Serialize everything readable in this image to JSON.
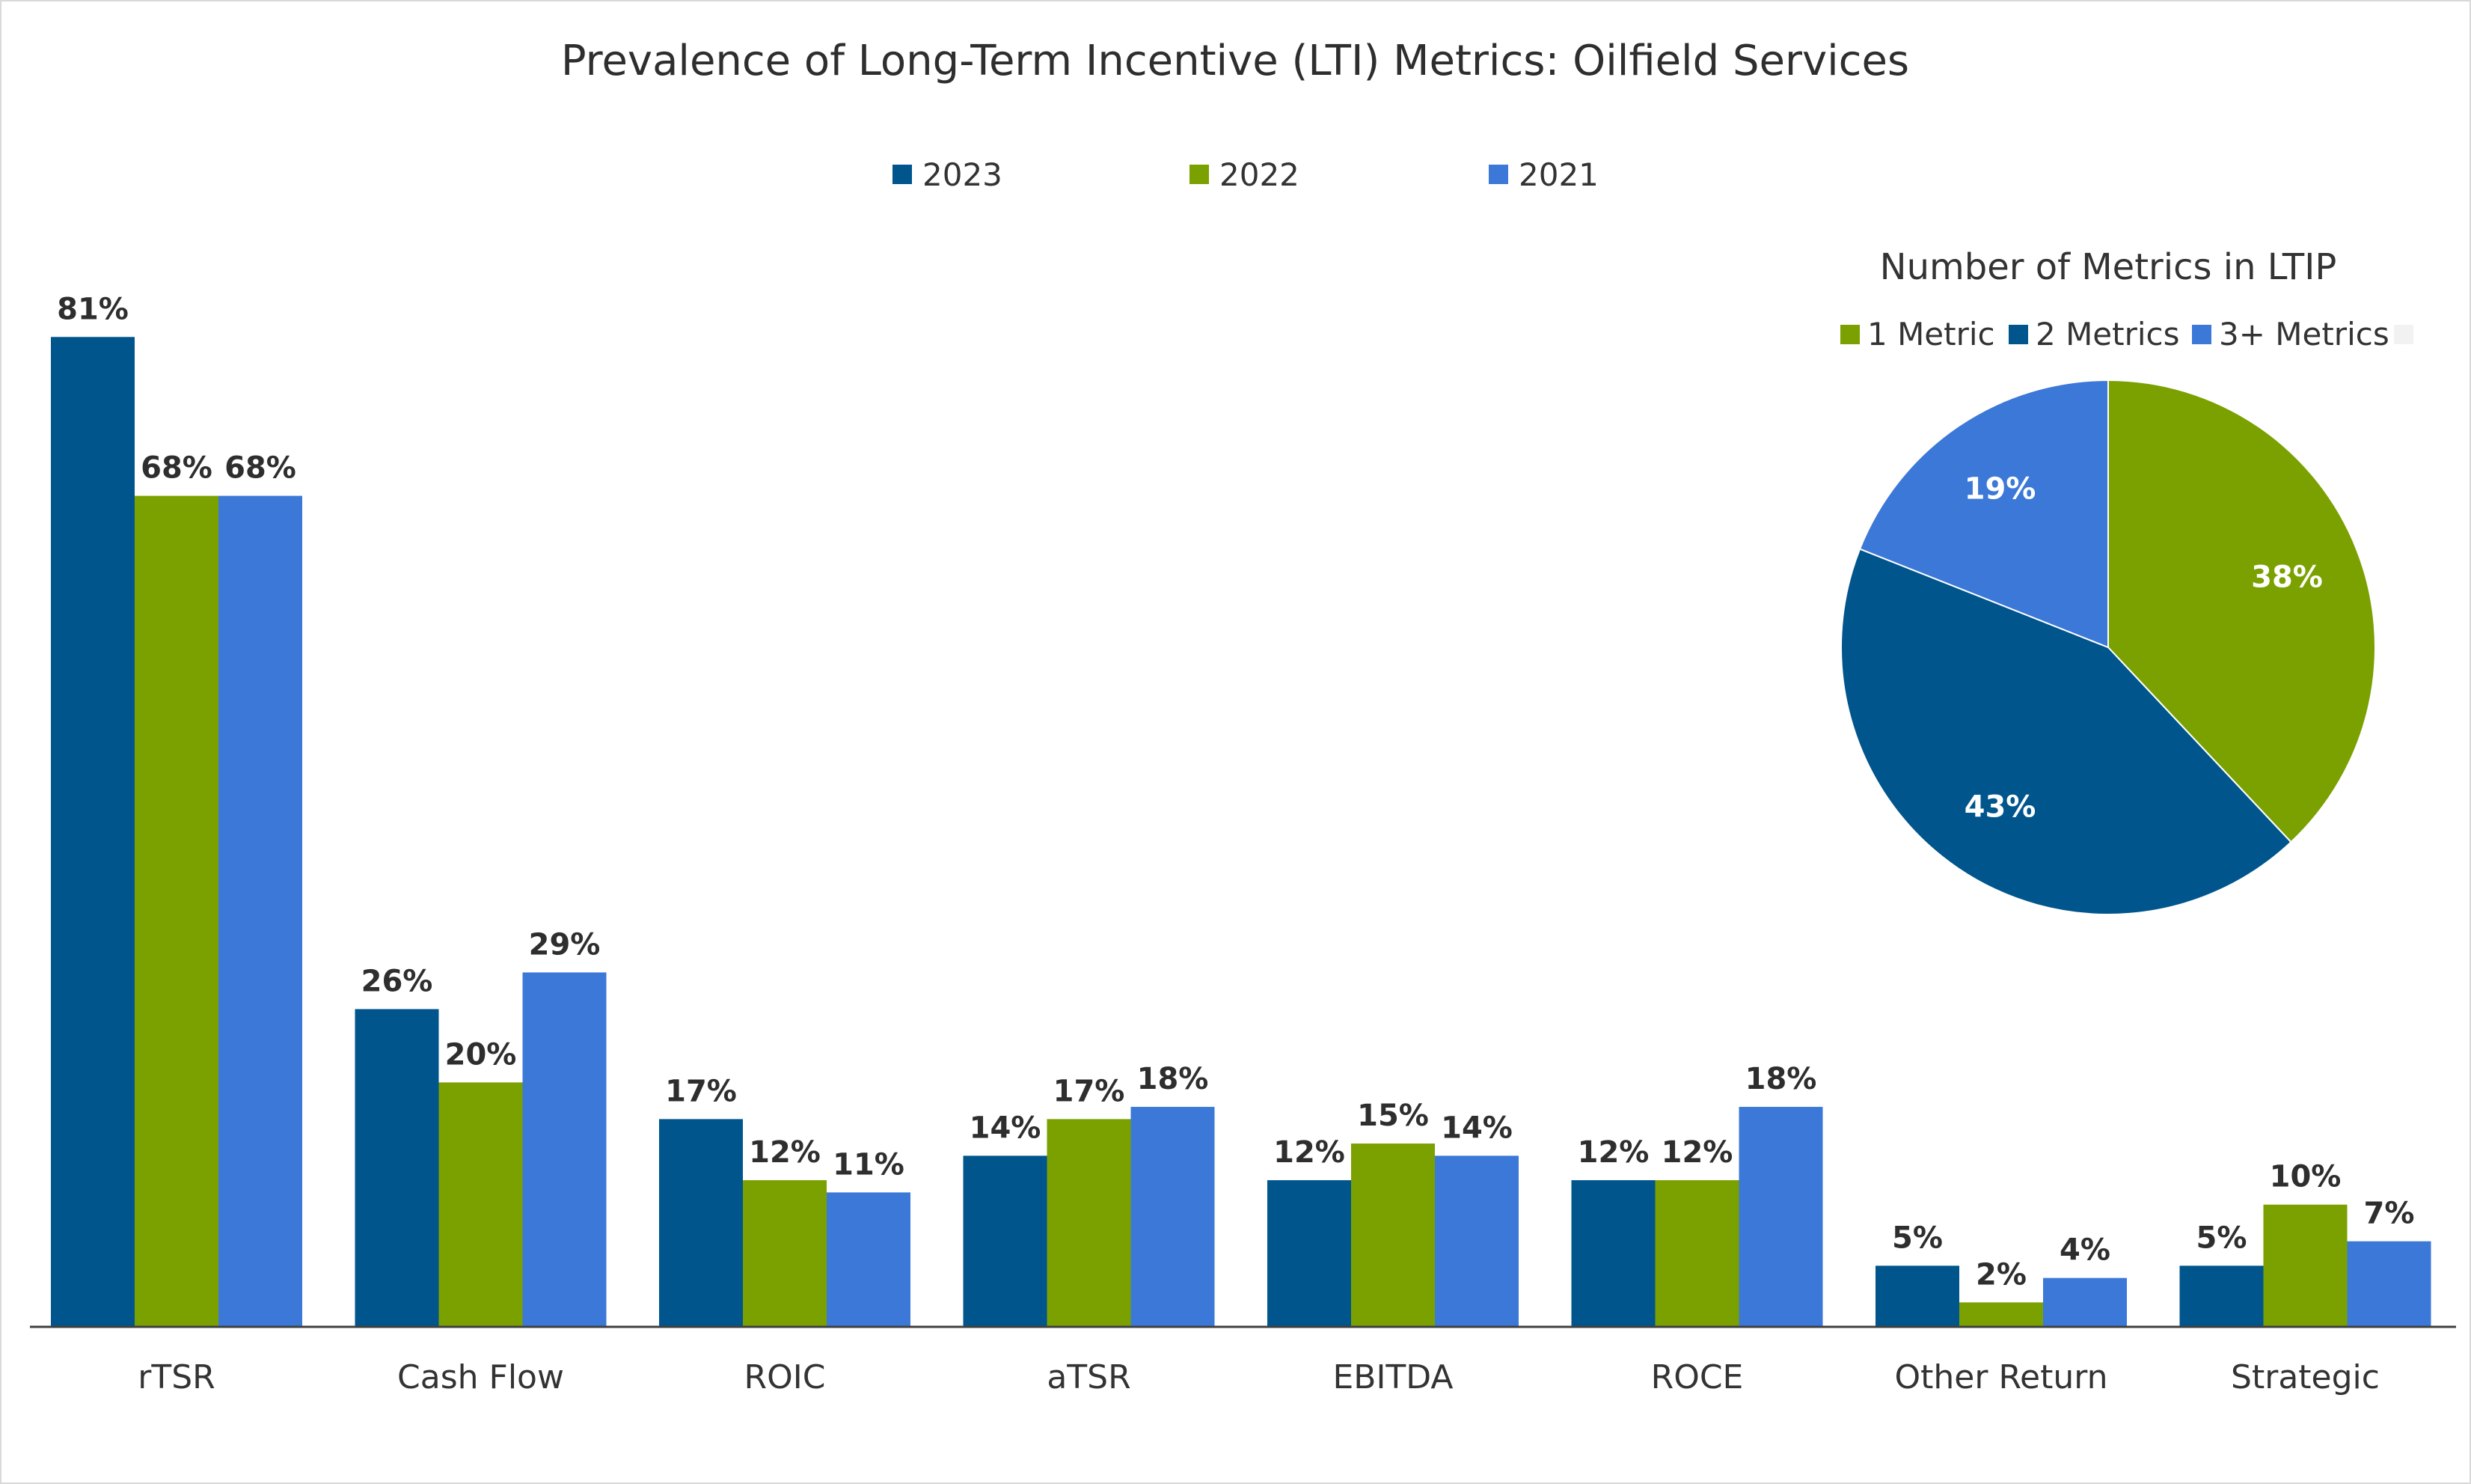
{
  "chart_data": [
    {
      "type": "bar",
      "title": "Prevalence of Long-Term Incentive (LTI) Metrics: Oilfield Services",
      "xlabel": "",
      "ylabel": "",
      "ylim": [
        0,
        100
      ],
      "grid": false,
      "legend_position": "top",
      "categories": [
        "rTSR",
        "Cash Flow",
        "ROIC",
        "aTSR",
        "EBITDA",
        "ROCE",
        "Other Return",
        "Strategic"
      ],
      "series": [
        {
          "name": "2023",
          "color": "#00558c",
          "values": [
            81,
            26,
            17,
            14,
            12,
            12,
            5,
            5
          ],
          "labels": [
            "81%",
            "26%",
            "17%",
            "14%",
            "12%",
            "12%",
            "5%",
            "5%"
          ]
        },
        {
          "name": "2022",
          "color": "#7aa100",
          "values": [
            68,
            20,
            12,
            17,
            15,
            12,
            2,
            10
          ],
          "labels": [
            "68%",
            "20%",
            "12%",
            "17%",
            "15%",
            "12%",
            "2%",
            "10%"
          ]
        },
        {
          "name": "2021",
          "color": "#3b78d8",
          "values": [
            68,
            29,
            11,
            18,
            14,
            18,
            4,
            7
          ],
          "labels": [
            "68%",
            "29%",
            "11%",
            "18%",
            "14%",
            "18%",
            "4%",
            "7%"
          ]
        }
      ]
    },
    {
      "type": "pie",
      "title": "Number of Metrics in LTIP",
      "legend_position": "top",
      "slices": [
        {
          "name": "1 Metric",
          "value": 38,
          "label": "38%",
          "color": "#7aa100"
        },
        {
          "name": "2 Metrics",
          "value": 43,
          "label": "43%",
          "color": "#00558c"
        },
        {
          "name": "3+ Metrics",
          "value": 19,
          "label": "19%",
          "color": "#3b78d8"
        }
      ],
      "extra_legend_swatch_color": "#f2f2f2"
    }
  ]
}
